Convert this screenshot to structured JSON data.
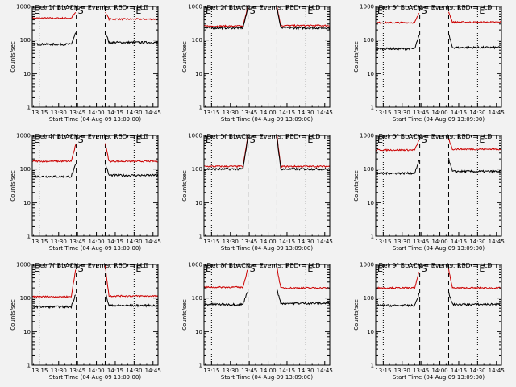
{
  "chart_data": [
    {
      "type": "line",
      "title": "Det 1f BLACK = Events, RED = LLD",
      "xlabel": "Start Time (04-Aug-09 13:09:00)",
      "ylabel": "Counts/sec",
      "yscale": "log",
      "ylim": [
        1,
        1000
      ],
      "xticks": [
        "13:15",
        "13:30",
        "13:45",
        "14:00",
        "14:15",
        "14:30",
        "14:45"
      ],
      "yticks": [
        "1",
        "10",
        "100",
        "1000"
      ],
      "markers": {
        "left": "E",
        "center": "S",
        "right": "E"
      },
      "series": [
        {
          "color": "#cc0000",
          "pre": 450,
          "post": 420,
          "spike": 700,
          "gap": true
        },
        {
          "color": "#000000",
          "pre": 75,
          "post": 85,
          "spike": 180,
          "gap": true
        }
      ]
    },
    {
      "type": "line",
      "title": "Det 2f BLACK = Events, RED = LLD",
      "xlabel": "Start Time (04-Aug-09 13:09:00)",
      "ylabel": "Counts/sec",
      "yscale": "log",
      "ylim": [
        1,
        1000
      ],
      "xticks": [
        "13:15",
        "13:30",
        "13:45",
        "14:00",
        "14:15",
        "14:30",
        "14:45"
      ],
      "yticks": [
        "1",
        "10",
        "100",
        "1000"
      ],
      "markers": {
        "left": "E",
        "center": "S",
        "right": "E"
      },
      "series": [
        {
          "color": "#cc0000",
          "pre": 260,
          "post": 270,
          "spike": 1000,
          "gap": false
        },
        {
          "color": "#000000",
          "pre": 230,
          "post": 230,
          "spike": 900,
          "gap": false
        }
      ]
    },
    {
      "type": "line",
      "title": "Det 3f BLACK = Events, RED = LLD",
      "xlabel": "Start Time (04-Aug-09 13:09:00)",
      "ylabel": "Counts/sec",
      "yscale": "log",
      "ylim": [
        1,
        1000
      ],
      "xticks": [
        "13:15",
        "13:30",
        "13:45",
        "14:00",
        "14:15",
        "14:30",
        "14:45"
      ],
      "yticks": [
        "1",
        "10",
        "100",
        "1000"
      ],
      "markers": {
        "left": "E",
        "center": "S",
        "right": "E"
      },
      "series": [
        {
          "color": "#cc0000",
          "pre": 330,
          "post": 340,
          "spike": 700,
          "gap": true
        },
        {
          "color": "#000000",
          "pre": 55,
          "post": 60,
          "spike": 150,
          "gap": true
        }
      ]
    },
    {
      "type": "line",
      "title": "Det 4f BLACK = Events, RED = LLD",
      "xlabel": "Start Time (04-Aug-09 13:09:00)",
      "ylabel": "Counts/sec",
      "yscale": "log",
      "ylim": [
        1,
        1000
      ],
      "xticks": [
        "13:15",
        "13:30",
        "13:45",
        "14:00",
        "14:15",
        "14:30",
        "14:45"
      ],
      "yticks": [
        "1",
        "10",
        "100",
        "1000"
      ],
      "markers": {
        "left": "E",
        "center": "S",
        "right": "E"
      },
      "series": [
        {
          "color": "#cc0000",
          "pre": 170,
          "post": 170,
          "spike": 600,
          "gap": true
        },
        {
          "color": "#000000",
          "pre": 60,
          "post": 65,
          "spike": 150,
          "gap": true
        }
      ]
    },
    {
      "type": "line",
      "title": "Det 5f BLACK = Events, RED = LLD",
      "xlabel": "Start Time (04-Aug-09 13:09:00)",
      "ylabel": "Counts/sec",
      "yscale": "log",
      "ylim": [
        1,
        1000
      ],
      "xticks": [
        "13:15",
        "13:30",
        "13:45",
        "14:00",
        "14:15",
        "14:30",
        "14:45"
      ],
      "yticks": [
        "1",
        "10",
        "100",
        "1000"
      ],
      "markers": {
        "left": "E",
        "center": "S",
        "right": "E"
      },
      "series": [
        {
          "color": "#cc0000",
          "pre": 120,
          "post": 120,
          "spike": 1000,
          "gap": false
        },
        {
          "color": "#000000",
          "pre": 100,
          "post": 100,
          "spike": 900,
          "gap": false
        }
      ]
    },
    {
      "type": "line",
      "title": "Det 6f BLACK = Events, RED = LLD",
      "xlabel": "Start Time (04-Aug-09 13:09:00)",
      "ylabel": "Counts/sec",
      "yscale": "log",
      "ylim": [
        1,
        1000
      ],
      "xticks": [
        "13:15",
        "13:30",
        "13:45",
        "14:00",
        "14:15",
        "14:30",
        "14:45"
      ],
      "yticks": [
        "1",
        "10",
        "100",
        "1000"
      ],
      "markers": {
        "left": "E",
        "center": "S",
        "right": "E"
      },
      "series": [
        {
          "color": "#cc0000",
          "pre": 370,
          "post": 390,
          "spike": 800,
          "gap": true
        },
        {
          "color": "#000000",
          "pre": 75,
          "post": 85,
          "spike": 200,
          "gap": true
        }
      ]
    },
    {
      "type": "line",
      "title": "Det 7f BLACK = Events, RED = LLD",
      "xlabel": "Start Time (04-Aug-09 13:09:00)",
      "ylabel": "Counts/sec",
      "yscale": "log",
      "ylim": [
        1,
        1000
      ],
      "xticks": [
        "13:15",
        "13:30",
        "13:45",
        "14:00",
        "14:15",
        "14:30",
        "14:45"
      ],
      "yticks": [
        "1",
        "10",
        "100",
        "1000"
      ],
      "markers": {
        "left": "E",
        "center": "S",
        "right": "E"
      },
      "series": [
        {
          "color": "#cc0000",
          "pre": 110,
          "post": 115,
          "spike": 900,
          "gap": true
        },
        {
          "color": "#000000",
          "pre": 55,
          "post": 60,
          "spike": 150,
          "gap": true
        }
      ]
    },
    {
      "type": "line",
      "title": "Det 8f BLACK = Events, RED = LLD",
      "xlabel": "Start Time (04-Aug-09 13:09:00)",
      "ylabel": "Counts/sec",
      "yscale": "log",
      "ylim": [
        1,
        1000
      ],
      "xticks": [
        "13:15",
        "13:30",
        "13:45",
        "14:00",
        "14:15",
        "14:30",
        "14:45"
      ],
      "yticks": [
        "1",
        "10",
        "100",
        "1000"
      ],
      "markers": {
        "left": "E",
        "center": "S",
        "right": "E"
      },
      "series": [
        {
          "color": "#cc0000",
          "pre": 210,
          "post": 200,
          "spike": 800,
          "gap": true
        },
        {
          "color": "#000000",
          "pre": 65,
          "post": 70,
          "spike": 180,
          "gap": true
        }
      ]
    },
    {
      "type": "line",
      "title": "Det 9f BLACK = Events, RED = LLD",
      "xlabel": "Start Time (04-Aug-09 13:09:00)",
      "ylabel": "Counts/sec",
      "yscale": "log",
      "ylim": [
        1,
        1000
      ],
      "xticks": [
        "13:15",
        "13:30",
        "13:45",
        "14:00",
        "14:15",
        "14:30",
        "14:45"
      ],
      "yticks": [
        "1",
        "10",
        "100",
        "1000"
      ],
      "markers": {
        "left": "E",
        "center": "S",
        "right": "E"
      },
      "series": [
        {
          "color": "#cc0000",
          "pre": 200,
          "post": 200,
          "spike": 700,
          "gap": true
        },
        {
          "color": "#000000",
          "pre": 60,
          "post": 65,
          "spike": 150,
          "gap": true
        }
      ]
    }
  ]
}
